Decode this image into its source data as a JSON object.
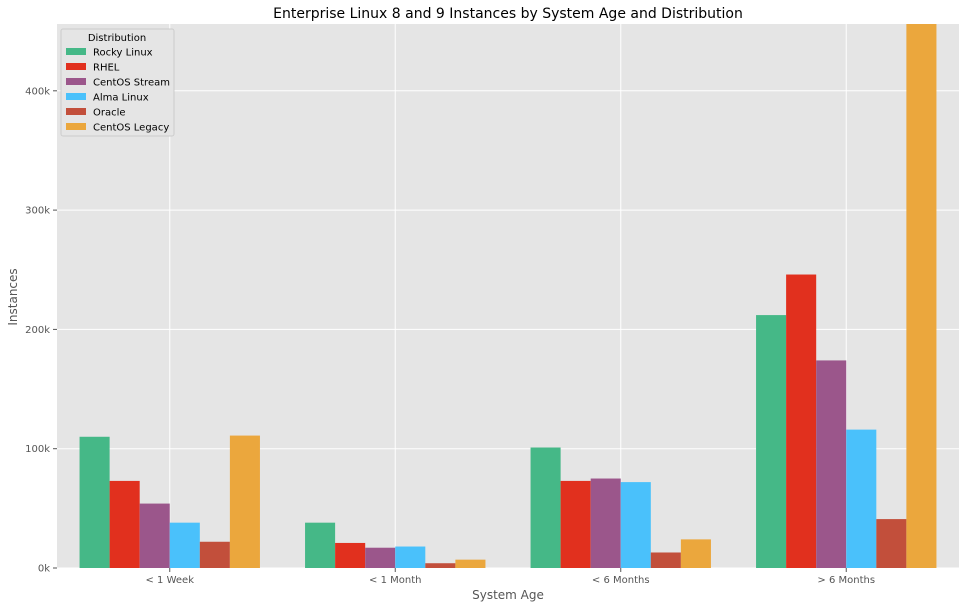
{
  "chart_data": {
    "type": "bar",
    "title": "Enterprise Linux 8 and 9 Instances by System Age and Distribution",
    "xlabel": "System Age",
    "ylabel": "Instances",
    "categories": [
      "< 1 Week",
      "< 1 Month",
      "< 6 Months",
      "> 6 Months"
    ],
    "ylim": [
      0,
      456000
    ],
    "yticks": [
      0,
      100000,
      200000,
      300000,
      400000
    ],
    "ytick_labels": [
      "0k",
      "100k",
      "200k",
      "300k",
      "400k"
    ],
    "grid": true,
    "legend": {
      "title": "Distribution",
      "placement": "top-left"
    },
    "series": [
      {
        "name": "Rocky Linux",
        "color": "#45b887",
        "values": [
          110000,
          38000,
          101000,
          212000
        ]
      },
      {
        "name": "RHEL",
        "color": "#e1301e",
        "values": [
          73000,
          21000,
          73000,
          246000
        ]
      },
      {
        "name": "CentOS Stream",
        "color": "#9b568b",
        "values": [
          54000,
          17000,
          75000,
          174000
        ]
      },
      {
        "name": "Alma Linux",
        "color": "#4ac1fb",
        "values": [
          38000,
          18000,
          72000,
          116000
        ]
      },
      {
        "name": "Oracle",
        "color": "#c24f3b",
        "values": [
          22000,
          4000,
          13000,
          41000
        ]
      },
      {
        "name": "CentOS Legacy",
        "color": "#eba73d",
        "values": [
          111000,
          7000,
          24000,
          456000
        ]
      }
    ]
  }
}
